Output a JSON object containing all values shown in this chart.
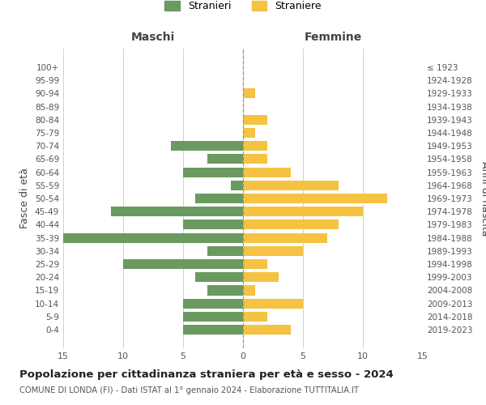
{
  "age_groups": [
    "100+",
    "95-99",
    "90-94",
    "85-89",
    "80-84",
    "75-79",
    "70-74",
    "65-69",
    "60-64",
    "55-59",
    "50-54",
    "45-49",
    "40-44",
    "35-39",
    "30-34",
    "25-29",
    "20-24",
    "15-19",
    "10-14",
    "5-9",
    "0-4"
  ],
  "birth_years": [
    "≤ 1923",
    "1924-1928",
    "1929-1933",
    "1934-1938",
    "1939-1943",
    "1944-1948",
    "1949-1953",
    "1954-1958",
    "1959-1963",
    "1964-1968",
    "1969-1973",
    "1974-1978",
    "1979-1983",
    "1984-1988",
    "1989-1993",
    "1994-1998",
    "1999-2003",
    "2004-2008",
    "2009-2013",
    "2014-2018",
    "2019-2023"
  ],
  "maschi": [
    0,
    0,
    0,
    0,
    0,
    0,
    6,
    3,
    5,
    1,
    4,
    11,
    5,
    15,
    3,
    10,
    4,
    3,
    5,
    5,
    5
  ],
  "femmine": [
    0,
    0,
    1,
    0,
    2,
    1,
    2,
    2,
    4,
    8,
    12,
    10,
    8,
    7,
    5,
    2,
    3,
    1,
    5,
    2,
    4
  ],
  "color_maschi": "#6a9a5f",
  "color_femmine": "#f5c242",
  "title": "Popolazione per cittadinanza straniera per età e sesso - 2024",
  "subtitle": "COMUNE DI LONDA (FI) - Dati ISTAT al 1° gennaio 2024 - Elaborazione TUTTITALIA.IT",
  "label_maschi": "Stranieri",
  "label_femmine": "Straniere",
  "xlabel_left": "Maschi",
  "xlabel_right": "Femmine",
  "ylabel_left": "Fasce di età",
  "ylabel_right": "Anni di nascita",
  "xlim": 15,
  "background_color": "#ffffff",
  "grid_color": "#d0d0d0"
}
